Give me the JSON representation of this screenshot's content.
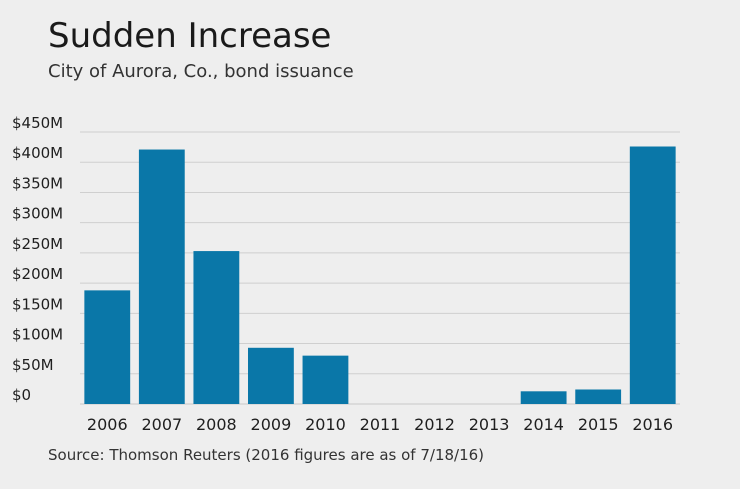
{
  "header": {
    "title": "Sudden Increase",
    "subtitle": "City of Aurora, Co., bond issuance"
  },
  "footer": {
    "source": "Source: Thomson Reuters (2016 figures are as of 7/18/16)"
  },
  "colors": {
    "background": "#eeeeee",
    "bar": "#0a77a8",
    "grid": "#cfcfcf",
    "baseline": "#c8c8c8"
  },
  "chart_data": {
    "type": "bar",
    "title": "Sudden Increase",
    "subtitle": "City of Aurora, Co., bond issuance",
    "xlabel": "",
    "ylabel": "",
    "categories": [
      "2006",
      "2007",
      "2008",
      "2009",
      "2010",
      "2011",
      "2012",
      "2013",
      "2014",
      "2015",
      "2016"
    ],
    "values": [
      188,
      421,
      253,
      93,
      80,
      0,
      0,
      0,
      21,
      24,
      426
    ],
    "value_unit": "$M",
    "ylim": [
      0,
      450
    ],
    "yticks": [
      0,
      50,
      100,
      150,
      200,
      250,
      300,
      350,
      400,
      450
    ],
    "ytick_labels": [
      "$0",
      "$50M",
      "$100M",
      "$150M",
      "$200M",
      "$250M",
      "$300M",
      "$350M",
      "$400M",
      "$450M"
    ],
    "grid": true,
    "legend": "none"
  }
}
